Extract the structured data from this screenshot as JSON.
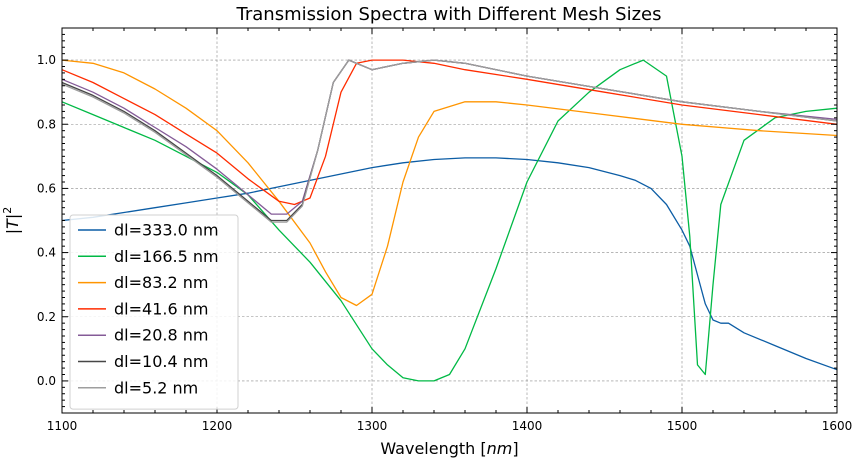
{
  "chart_data": {
    "type": "line",
    "title": "Transmission Spectra with Different Mesh Sizes",
    "xlabel": "Wavelength",
    "xlabel_unit": "nm",
    "ylabel": "T",
    "ylabel_exponent": "2",
    "xlim": [
      1100,
      1600
    ],
    "ylim": [
      -0.1,
      1.1
    ],
    "xticks": [
      1100,
      1200,
      1300,
      1400,
      1500,
      1600
    ],
    "yticks": [
      0.0,
      0.2,
      0.4,
      0.6,
      0.8,
      1.0
    ],
    "xtick_labels": [
      "1100",
      "1200",
      "1300",
      "1400",
      "1500",
      "1600"
    ],
    "ytick_labels": [
      "0.0",
      "0.2",
      "0.4",
      "0.6",
      "0.8",
      "1.0"
    ],
    "grid": true,
    "legend_position": "lower-left",
    "series": [
      {
        "name": "dl=333.0 nm",
        "color": "#0c5da5",
        "points": [
          [
            1100,
            0.5
          ],
          [
            1120,
            0.51
          ],
          [
            1140,
            0.525
          ],
          [
            1160,
            0.54
          ],
          [
            1180,
            0.555
          ],
          [
            1200,
            0.57
          ],
          [
            1220,
            0.585
          ],
          [
            1240,
            0.605
          ],
          [
            1260,
            0.625
          ],
          [
            1280,
            0.645
          ],
          [
            1300,
            0.665
          ],
          [
            1320,
            0.68
          ],
          [
            1340,
            0.69
          ],
          [
            1360,
            0.695
          ],
          [
            1380,
            0.695
          ],
          [
            1400,
            0.69
          ],
          [
            1420,
            0.68
          ],
          [
            1440,
            0.665
          ],
          [
            1460,
            0.64
          ],
          [
            1470,
            0.625
          ],
          [
            1480,
            0.6
          ],
          [
            1490,
            0.55
          ],
          [
            1500,
            0.47
          ],
          [
            1505,
            0.42
          ],
          [
            1510,
            0.33
          ],
          [
            1515,
            0.24
          ],
          [
            1520,
            0.19
          ],
          [
            1525,
            0.18
          ],
          [
            1530,
            0.18
          ],
          [
            1540,
            0.15
          ],
          [
            1560,
            0.11
          ],
          [
            1580,
            0.07
          ],
          [
            1600,
            0.035
          ]
        ]
      },
      {
        "name": "dl=166.5 nm",
        "color": "#00b945",
        "points": [
          [
            1100,
            0.87
          ],
          [
            1120,
            0.83
          ],
          [
            1140,
            0.79
          ],
          [
            1160,
            0.75
          ],
          [
            1180,
            0.7
          ],
          [
            1200,
            0.65
          ],
          [
            1220,
            0.58
          ],
          [
            1240,
            0.47
          ],
          [
            1260,
            0.37
          ],
          [
            1280,
            0.25
          ],
          [
            1300,
            0.1
          ],
          [
            1310,
            0.05
          ],
          [
            1320,
            0.01
          ],
          [
            1330,
            0.0
          ],
          [
            1340,
            0.0
          ],
          [
            1350,
            0.02
          ],
          [
            1360,
            0.1
          ],
          [
            1380,
            0.35
          ],
          [
            1400,
            0.62
          ],
          [
            1420,
            0.81
          ],
          [
            1440,
            0.9
          ],
          [
            1460,
            0.97
          ],
          [
            1475,
            1.0
          ],
          [
            1490,
            0.95
          ],
          [
            1500,
            0.7
          ],
          [
            1505,
            0.45
          ],
          [
            1510,
            0.05
          ],
          [
            1515,
            0.02
          ],
          [
            1520,
            0.3
          ],
          [
            1525,
            0.55
          ],
          [
            1540,
            0.75
          ],
          [
            1560,
            0.82
          ],
          [
            1580,
            0.84
          ],
          [
            1600,
            0.85
          ]
        ]
      },
      {
        "name": "dl=83.2 nm",
        "color": "#ff9500",
        "points": [
          [
            1100,
            1.0
          ],
          [
            1120,
            0.99
          ],
          [
            1140,
            0.96
          ],
          [
            1160,
            0.91
          ],
          [
            1180,
            0.85
          ],
          [
            1200,
            0.78
          ],
          [
            1220,
            0.68
          ],
          [
            1240,
            0.56
          ],
          [
            1260,
            0.43
          ],
          [
            1270,
            0.34
          ],
          [
            1280,
            0.26
          ],
          [
            1290,
            0.235
          ],
          [
            1300,
            0.27
          ],
          [
            1310,
            0.42
          ],
          [
            1320,
            0.62
          ],
          [
            1330,
            0.76
          ],
          [
            1340,
            0.84
          ],
          [
            1360,
            0.87
          ],
          [
            1380,
            0.87
          ],
          [
            1400,
            0.86
          ],
          [
            1450,
            0.83
          ],
          [
            1500,
            0.8
          ],
          [
            1550,
            0.78
          ],
          [
            1600,
            0.765
          ]
        ]
      },
      {
        "name": "dl=41.6 nm",
        "color": "#ff2c00",
        "points": [
          [
            1100,
            0.97
          ],
          [
            1120,
            0.93
          ],
          [
            1140,
            0.88
          ],
          [
            1160,
            0.83
          ],
          [
            1180,
            0.77
          ],
          [
            1200,
            0.71
          ],
          [
            1220,
            0.63
          ],
          [
            1240,
            0.56
          ],
          [
            1250,
            0.55
          ],
          [
            1260,
            0.57
          ],
          [
            1270,
            0.7
          ],
          [
            1280,
            0.9
          ],
          [
            1290,
            0.99
          ],
          [
            1300,
            1.0
          ],
          [
            1320,
            1.0
          ],
          [
            1340,
            0.99
          ],
          [
            1360,
            0.97
          ],
          [
            1400,
            0.94
          ],
          [
            1450,
            0.9
          ],
          [
            1500,
            0.86
          ],
          [
            1550,
            0.83
          ],
          [
            1600,
            0.8
          ]
        ]
      },
      {
        "name": "dl=20.8 nm",
        "color": "#845b97",
        "points": [
          [
            1100,
            0.94
          ],
          [
            1120,
            0.9
          ],
          [
            1140,
            0.85
          ],
          [
            1160,
            0.79
          ],
          [
            1180,
            0.73
          ],
          [
            1200,
            0.66
          ],
          [
            1220,
            0.58
          ],
          [
            1235,
            0.52
          ],
          [
            1245,
            0.52
          ],
          [
            1255,
            0.56
          ],
          [
            1265,
            0.72
          ],
          [
            1275,
            0.93
          ],
          [
            1285,
            1.0
          ],
          [
            1300,
            0.97
          ],
          [
            1320,
            0.99
          ],
          [
            1340,
            1.0
          ],
          [
            1360,
            0.99
          ],
          [
            1400,
            0.95
          ],
          [
            1450,
            0.91
          ],
          [
            1500,
            0.87
          ],
          [
            1550,
            0.84
          ],
          [
            1600,
            0.815
          ]
        ]
      },
      {
        "name": "dl=10.4 nm",
        "color": "#474747",
        "points": [
          [
            1100,
            0.93
          ],
          [
            1120,
            0.89
          ],
          [
            1140,
            0.84
          ],
          [
            1160,
            0.78
          ],
          [
            1180,
            0.71
          ],
          [
            1200,
            0.64
          ],
          [
            1220,
            0.56
          ],
          [
            1235,
            0.5
          ],
          [
            1245,
            0.5
          ],
          [
            1255,
            0.55
          ],
          [
            1265,
            0.72
          ],
          [
            1275,
            0.93
          ],
          [
            1285,
            1.0
          ],
          [
            1300,
            0.97
          ],
          [
            1320,
            0.99
          ],
          [
            1340,
            1.0
          ],
          [
            1360,
            0.99
          ],
          [
            1400,
            0.95
          ],
          [
            1450,
            0.91
          ],
          [
            1500,
            0.87
          ],
          [
            1550,
            0.84
          ],
          [
            1600,
            0.81
          ]
        ]
      },
      {
        "name": "dl=5.2 nm",
        "color": "#9e9e9e",
        "points": [
          [
            1100,
            0.925
          ],
          [
            1120,
            0.885
          ],
          [
            1140,
            0.835
          ],
          [
            1160,
            0.775
          ],
          [
            1180,
            0.705
          ],
          [
            1200,
            0.635
          ],
          [
            1220,
            0.555
          ],
          [
            1235,
            0.495
          ],
          [
            1245,
            0.495
          ],
          [
            1255,
            0.545
          ],
          [
            1265,
            0.72
          ],
          [
            1275,
            0.93
          ],
          [
            1285,
            1.0
          ],
          [
            1300,
            0.97
          ],
          [
            1320,
            0.99
          ],
          [
            1340,
            1.0
          ],
          [
            1360,
            0.99
          ],
          [
            1400,
            0.95
          ],
          [
            1450,
            0.91
          ],
          [
            1500,
            0.87
          ],
          [
            1550,
            0.84
          ],
          [
            1600,
            0.81
          ]
        ]
      }
    ]
  }
}
